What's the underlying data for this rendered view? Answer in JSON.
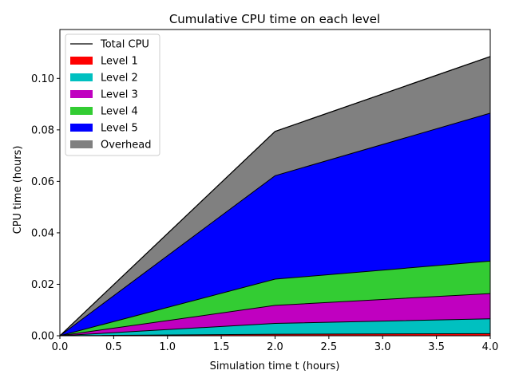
{
  "chart_data": {
    "type": "area",
    "title": "Cumulative CPU time on each level",
    "xlabel": "Simulation time t (hours)",
    "ylabel": "CPU time (hours)",
    "xlim": [
      0,
      4
    ],
    "ylim": [
      0,
      0.119
    ],
    "xticks": [
      0,
      0.5,
      1.0,
      1.5,
      2.0,
      2.5,
      3.0,
      3.5,
      4.0
    ],
    "xtick_labels": [
      "0.0",
      "0.5",
      "1.0",
      "1.5",
      "2.0",
      "2.5",
      "3.0",
      "3.5",
      "4.0"
    ],
    "yticks": [
      0,
      0.02,
      0.04,
      0.06,
      0.08,
      0.1
    ],
    "ytick_labels": [
      "0.00",
      "0.02",
      "0.04",
      "0.06",
      "0.08",
      "0.10"
    ],
    "grid": false,
    "legend_position": "top-left",
    "x": [
      0,
      2,
      4
    ],
    "series": [
      {
        "name": "Level 1",
        "color": "#ff0000",
        "values": [
          0,
          0.0006,
          0.0008
        ]
      },
      {
        "name": "Level 2",
        "color": "#00c0c0",
        "values": [
          0,
          0.0042,
          0.0058
        ]
      },
      {
        "name": "Level 3",
        "color": "#c000c0",
        "values": [
          0,
          0.007,
          0.0098
        ]
      },
      {
        "name": "Level 4",
        "color": "#33cc33",
        "values": [
          0,
          0.0102,
          0.0126
        ]
      },
      {
        "name": "Level 5",
        "color": "#0000ff",
        "values": [
          0,
          0.0402,
          0.0575
        ]
      },
      {
        "name": "Overhead",
        "color": "#808080",
        "values": [
          0,
          0.0172,
          0.022
        ]
      }
    ],
    "total": {
      "name": "Total CPU",
      "color": "#000000",
      "values": [
        0,
        0.0794,
        0.1085
      ]
    }
  }
}
